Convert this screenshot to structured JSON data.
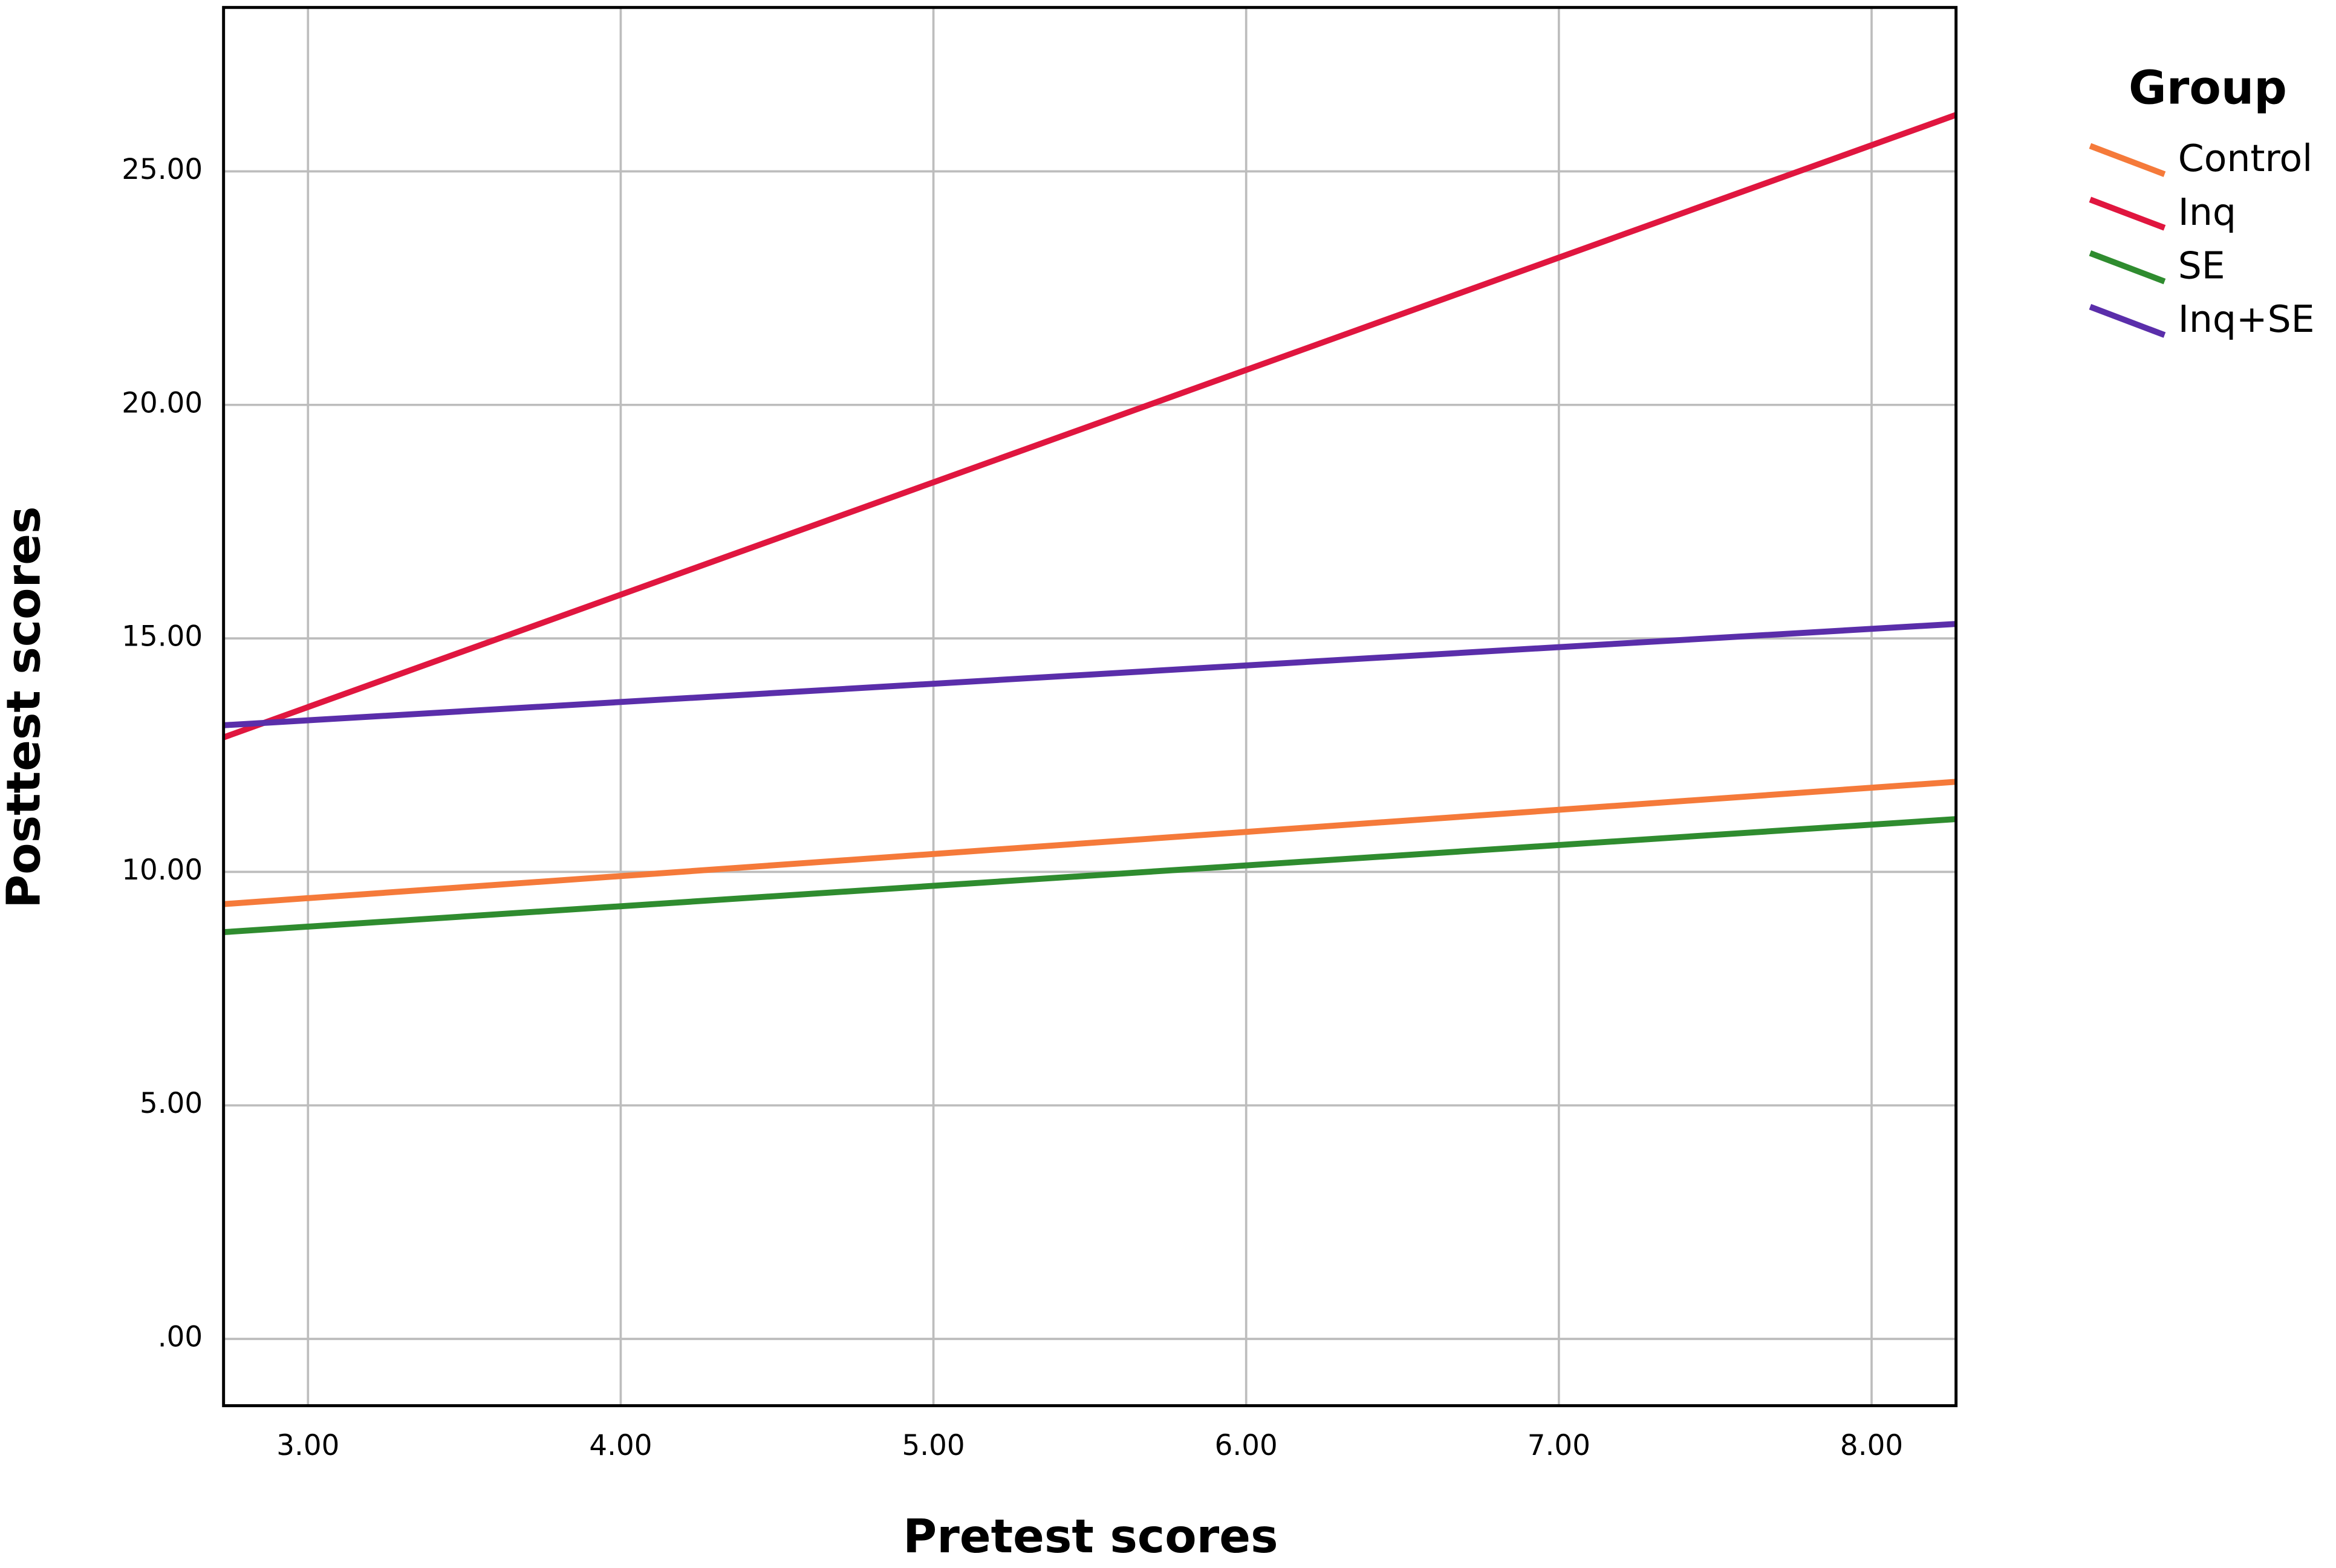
{
  "chart_data": {
    "type": "line",
    "x_label": "Pretest scores",
    "y_label": "Posttest scores",
    "legend_title": "Group",
    "legend": "right",
    "grid": true,
    "x": [
      2.73,
      8.27
    ],
    "series": [
      {
        "name": "Control",
        "color": "#f57a3a",
        "values": [
          9.31,
          11.93
        ]
      },
      {
        "name": "Inq",
        "color": "#e0163f",
        "values": [
          12.88,
          26.21
        ]
      },
      {
        "name": "SE",
        "color": "#2f8c2f",
        "values": [
          8.71,
          11.13
        ]
      },
      {
        "name": "Inq+SE",
        "color": "#5a2eaa",
        "values": [
          13.14,
          15.31
        ]
      }
    ],
    "xlim": [
      2.73,
      8.27
    ],
    "xticks": [
      {
        "value": 3,
        "label": "3.00"
      },
      {
        "value": 4,
        "label": "4.00"
      },
      {
        "value": 5,
        "label": "5.00"
      },
      {
        "value": 6,
        "label": "6.00"
      },
      {
        "value": 7,
        "label": "7.00"
      },
      {
        "value": 8,
        "label": "8.00"
      }
    ],
    "ylim": [
      -1.43,
      28.51
    ],
    "yticks": [
      {
        "value": 0,
        "label": ".00"
      },
      {
        "value": 5,
        "label": "5.00"
      },
      {
        "value": 10,
        "label": "10.00"
      },
      {
        "value": 15,
        "label": "15.00"
      },
      {
        "value": 20,
        "label": "20.00"
      },
      {
        "value": 25,
        "label": "25.00"
      }
    ]
  }
}
